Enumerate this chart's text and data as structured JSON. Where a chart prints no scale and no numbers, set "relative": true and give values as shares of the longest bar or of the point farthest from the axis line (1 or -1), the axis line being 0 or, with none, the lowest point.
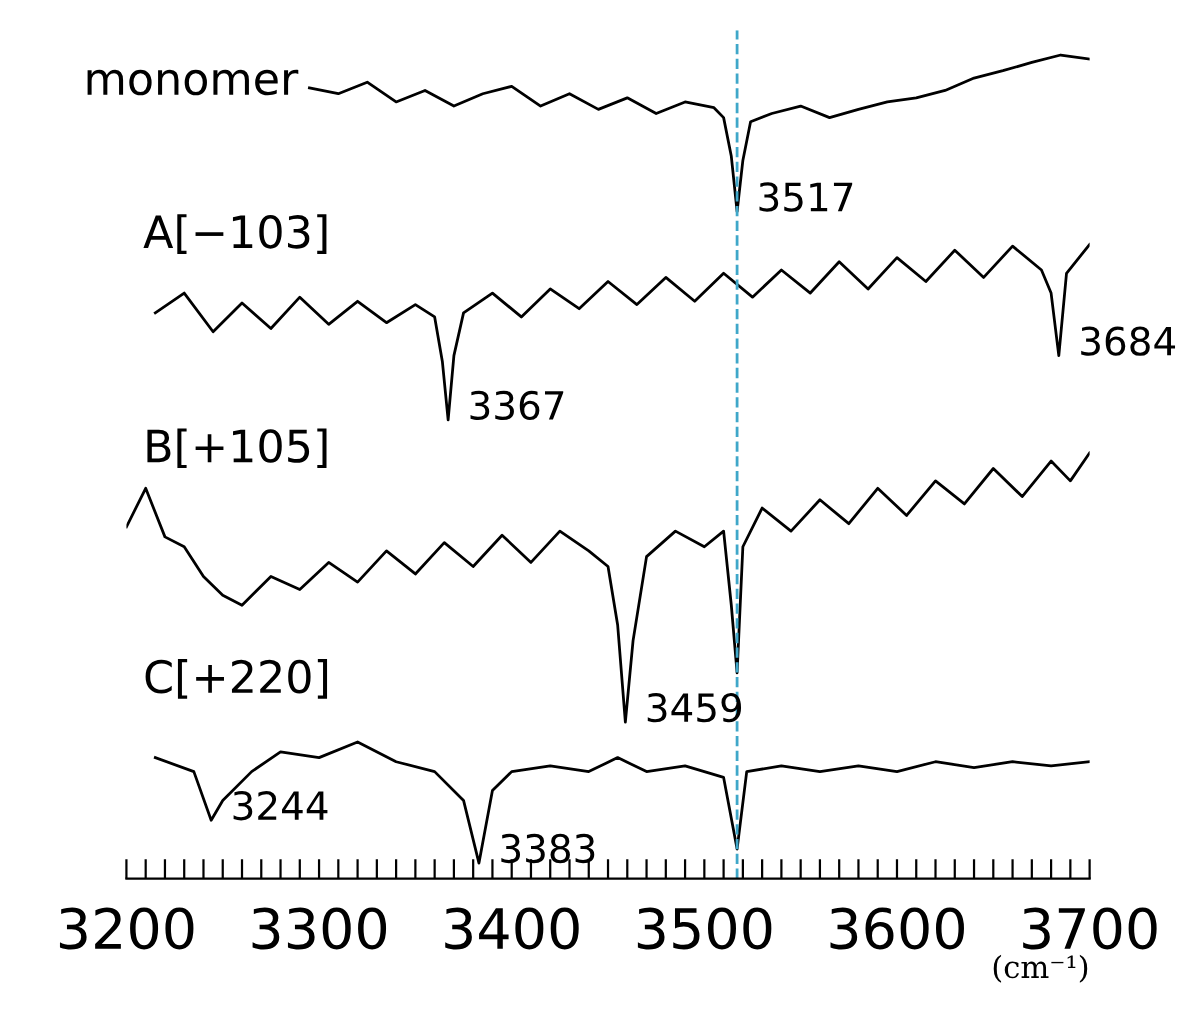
{
  "chart_data": {
    "type": "line",
    "relative": true,
    "xlabel": "(cm⁻¹)",
    "legend": false,
    "grid": false,
    "marker": "none",
    "line_style": "solid",
    "xlim": [
      3200,
      3700
    ],
    "xticks": [
      3200,
      {
        "value": 3210,
        "label": null
      },
      {
        "value": 3220,
        "label": null
      },
      {
        "value": 3230,
        "label": null
      },
      {
        "value": 3240,
        "label": null
      },
      {
        "value": 3250,
        "label": null
      },
      {
        "value": 3260,
        "label": null
      },
      {
        "value": 3270,
        "label": null
      },
      {
        "value": 3280,
        "label": null
      },
      {
        "value": 3290,
        "label": null
      },
      3300,
      {
        "value": 3310,
        "label": null
      },
      {
        "value": 3320,
        "label": null
      },
      {
        "value": 3330,
        "label": null
      },
      {
        "value": 3340,
        "label": null
      },
      {
        "value": 3350,
        "label": null
      },
      {
        "value": 3360,
        "label": null
      },
      {
        "value": 3370,
        "label": null
      },
      {
        "value": 3380,
        "label": null
      },
      {
        "value": 3390,
        "label": null
      },
      3400,
      {
        "value": 3410,
        "label": null
      },
      {
        "value": 3420,
        "label": null
      },
      {
        "value": 3430,
        "label": null
      },
      {
        "value": 3440,
        "label": null
      },
      {
        "value": 3450,
        "label": null
      },
      {
        "value": 3460,
        "label": null
      },
      {
        "value": 3470,
        "label": null
      },
      {
        "value": 3480,
        "label": null
      },
      {
        "value": 3490,
        "label": null
      },
      3500,
      {
        "value": 3510,
        "label": null
      },
      {
        "value": 3520,
        "label": null
      },
      {
        "value": 3530,
        "label": null
      },
      {
        "value": 3540,
        "label": null
      },
      {
        "value": 3550,
        "label": null
      },
      {
        "value": 3560,
        "label": null
      },
      {
        "value": 3570,
        "label": null
      },
      {
        "value": 3580,
        "label": null
      },
      {
        "value": 3590,
        "label": null
      },
      3600,
      {
        "value": 3610,
        "label": null
      },
      {
        "value": 3620,
        "label": null
      },
      {
        "value": 3630,
        "label": null
      },
      {
        "value": 3640,
        "label": null
      },
      {
        "value": 3650,
        "label": null
      },
      {
        "value": 3660,
        "label": null
      },
      {
        "value": 3670,
        "label": null
      },
      {
        "value": 3680,
        "label": null
      },
      {
        "value": 3690,
        "label": null
      },
      3700
    ],
    "series": [
      {
        "name": "monomer",
        "color": "#000000",
        "x": [
          3295,
          3310,
          3325,
          3340,
          3355,
          3370,
          3385,
          3400,
          3415,
          3430,
          3445,
          3460,
          3475,
          3490,
          3505,
          3510,
          3514,
          3517,
          3520,
          3524,
          3535,
          3550,
          3565,
          3580,
          3595,
          3610,
          3625,
          3640,
          3655,
          3670,
          3685,
          3700
        ],
        "values": [
          0.96,
          0.953,
          0.967,
          0.943,
          0.957,
          0.938,
          0.953,
          0.962,
          0.938,
          0.953,
          0.934,
          0.948,
          0.929,
          0.943,
          0.936,
          0.924,
          0.877,
          0.81,
          0.872,
          0.919,
          0.929,
          0.938,
          0.924,
          0.934,
          0.943,
          0.948,
          0.957,
          0.972,
          0.981,
          0.991,
          1.0,
          0.995
        ]
      },
      {
        "name": "A[−103]",
        "color": "#000000",
        "x": [
          3215,
          3230,
          3245,
          3260,
          3275,
          3290,
          3305,
          3320,
          3335,
          3350,
          3360,
          3364,
          3367,
          3370,
          3375,
          3390,
          3405,
          3420,
          3435,
          3450,
          3465,
          3480,
          3495,
          3510,
          3525,
          3540,
          3555,
          3570,
          3585,
          3600,
          3615,
          3630,
          3645,
          3660,
          3675,
          3680,
          3684,
          3688,
          3700
        ],
        "values": [
          0.687,
          0.711,
          0.664,
          0.699,
          0.668,
          0.706,
          0.673,
          0.701,
          0.675,
          0.697,
          0.682,
          0.628,
          0.557,
          0.635,
          0.687,
          0.711,
          0.682,
          0.716,
          0.692,
          0.725,
          0.697,
          0.73,
          0.701,
          0.735,
          0.706,
          0.739,
          0.711,
          0.749,
          0.716,
          0.754,
          0.725,
          0.763,
          0.73,
          0.768,
          0.739,
          0.711,
          0.635,
          0.735,
          0.77
        ]
      },
      {
        "name": "B[+105]",
        "color": "#000000",
        "x": [
          3200,
          3210,
          3220,
          3230,
          3240,
          3250,
          3260,
          3275,
          3290,
          3305,
          3320,
          3335,
          3350,
          3365,
          3380,
          3395,
          3410,
          3425,
          3440,
          3450,
          3455,
          3459,
          3463,
          3470,
          3485,
          3500,
          3510,
          3514,
          3517,
          3520,
          3530,
          3545,
          3560,
          3575,
          3590,
          3605,
          3620,
          3635,
          3650,
          3665,
          3680,
          3690,
          3700
        ],
        "values": [
          0.427,
          0.474,
          0.415,
          0.403,
          0.367,
          0.344,
          0.332,
          0.367,
          0.351,
          0.384,
          0.36,
          0.398,
          0.37,
          0.408,
          0.379,
          0.417,
          0.384,
          0.422,
          0.398,
          0.379,
          0.308,
          0.19,
          0.289,
          0.391,
          0.422,
          0.403,
          0.422,
          0.332,
          0.25,
          0.403,
          0.45,
          0.422,
          0.46,
          0.431,
          0.474,
          0.441,
          0.483,
          0.455,
          0.498,
          0.464,
          0.507,
          0.483,
          0.517
        ]
      },
      {
        "name": "C[+220]",
        "color": "#000000",
        "x": [
          3215,
          3235,
          3244,
          3250,
          3265,
          3280,
          3300,
          3320,
          3340,
          3360,
          3375,
          3383,
          3390,
          3400,
          3420,
          3440,
          3455,
          3470,
          3490,
          3510,
          3517,
          3522,
          3540,
          3560,
          3580,
          3600,
          3620,
          3640,
          3660,
          3680,
          3700
        ],
        "values": [
          0.147,
          0.13,
          0.071,
          0.095,
          0.13,
          0.154,
          0.147,
          0.166,
          0.142,
          0.13,
          0.095,
          0.019,
          0.107,
          0.13,
          0.137,
          0.13,
          0.147,
          0.13,
          0.137,
          0.123,
          0.036,
          0.13,
          0.137,
          0.13,
          0.137,
          0.13,
          0.142,
          0.135,
          0.142,
          0.137,
          0.142
        ]
      }
    ],
    "ref_lines": [
      {
        "axis": "x",
        "value": 3517,
        "color": "#3fa7c9",
        "line_style": "dashed"
      }
    ],
    "annotations": [
      {
        "text": "3517",
        "x": 3517,
        "y": 0.81
      },
      {
        "text": "3367",
        "x": 3367,
        "y": 0.557
      },
      {
        "text": "3684",
        "x": 3684,
        "y": 0.635
      },
      {
        "text": "3459",
        "x": 3459,
        "y": 0.19
      },
      {
        "text": "3244",
        "x": 3244,
        "y": 0.071
      },
      {
        "text": "3383",
        "x": 3383,
        "y": 0.019
      }
    ]
  }
}
